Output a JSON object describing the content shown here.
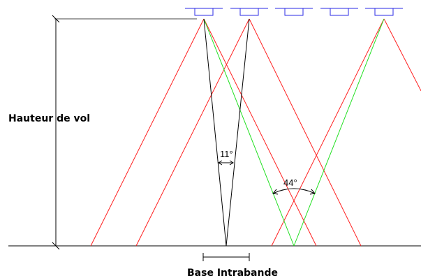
{
  "labels": {
    "flight_height": "Hauteur de vol",
    "intraband_base": "Base Intrabande",
    "small_angle": "11°",
    "wide_angle": "44°"
  },
  "colors": {
    "ray_red": "#ff2020",
    "ray_green": "#20e020",
    "camera_blue": "#2a2ae6",
    "line_black": "#000000"
  },
  "icons": {
    "camera": "camera-icon"
  },
  "cameras_count": 5
}
